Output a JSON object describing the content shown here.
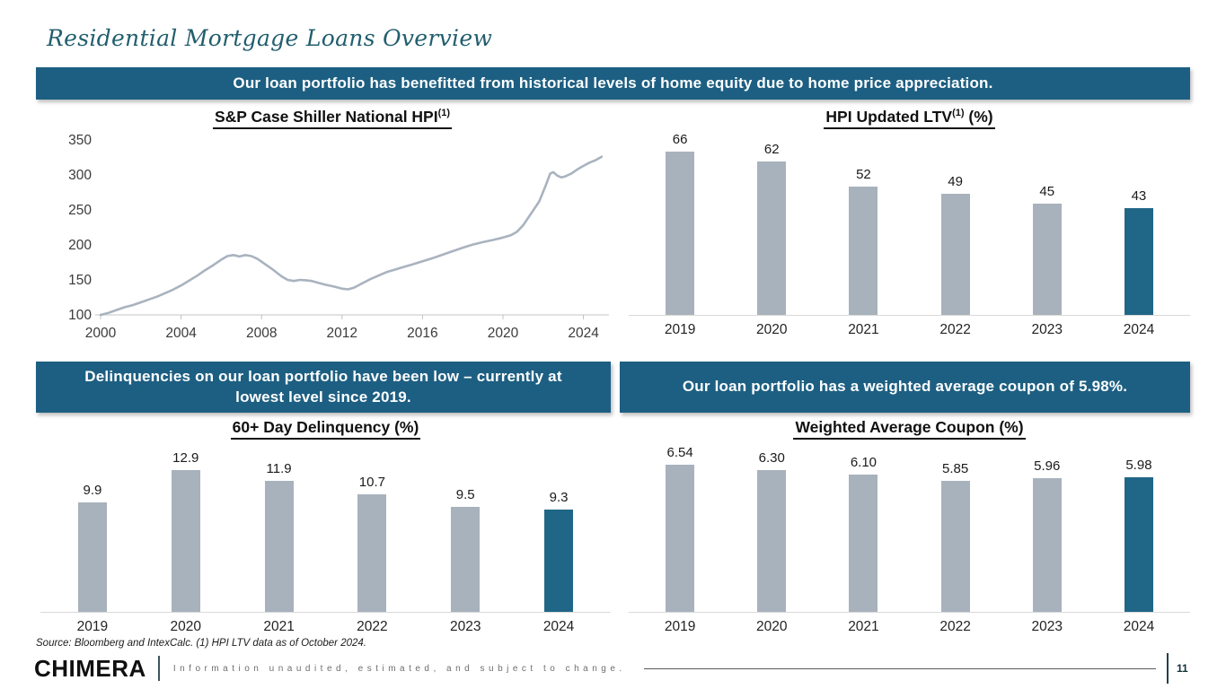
{
  "page": {
    "title": "Residential Mortgage Loans Overview",
    "page_number": "11"
  },
  "banners": {
    "top": "Our loan portfolio has benefitted from historical levels of home equity due to home price appreciation.",
    "bottom_left": "Delinquencies on our loan portfolio have been low – currently at lowest level since 2019.",
    "bottom_right": "Our loan portfolio has a weighted average coupon of 5.98%."
  },
  "footer": {
    "source_note": "Source:  Bloomberg and IntexCalc.  (1) HPI LTV data as of October 2024.",
    "logo_text": "CHIMERA",
    "disclaimer": "Information unaudited, estimated, and subject to change."
  },
  "colors": {
    "banner_teal": "#1d5f82",
    "bar_gray": "#a8b2bc",
    "bar_teal": "#206687",
    "line_gray": "#a9b3bf",
    "axis_gray": "#d9d9d9",
    "tick_gray": "#c0c0c0"
  },
  "chart_data": [
    {
      "id": "hpi_line",
      "type": "line",
      "title": "S&P Case Shiller National HPI",
      "title_sup": "(1)",
      "title_suffix": "",
      "x": [
        2000.0,
        2000.4,
        2000.8,
        2001.2,
        2001.6,
        2002.0,
        2002.4,
        2002.8,
        2003.2,
        2003.6,
        2004.0,
        2004.4,
        2004.8,
        2005.2,
        2005.6,
        2006.0,
        2006.3,
        2006.6,
        2006.9,
        2007.2,
        2007.5,
        2007.8,
        2008.2,
        2008.6,
        2009.0,
        2009.3,
        2009.6,
        2009.9,
        2010.2,
        2010.5,
        2010.8,
        2011.2,
        2011.6,
        2012.0,
        2012.3,
        2012.6,
        2013.0,
        2013.4,
        2013.8,
        2014.2,
        2014.6,
        2015.0,
        2015.5,
        2016.0,
        2016.5,
        2017.0,
        2017.5,
        2018.0,
        2018.5,
        2019.0,
        2019.5,
        2020.0,
        2020.4,
        2020.7,
        2021.0,
        2021.4,
        2021.8,
        2022.1,
        2022.35,
        2022.5,
        2022.7,
        2022.9,
        2023.1,
        2023.4,
        2023.7,
        2024.0,
        2024.3,
        2024.6,
        2024.9
      ],
      "values": [
        100,
        103,
        107,
        111,
        114,
        118,
        122,
        126,
        131,
        136,
        142,
        149,
        156,
        164,
        171,
        179,
        184,
        185.5,
        183.5,
        185.5,
        184,
        180,
        172,
        164,
        155,
        150,
        148.5,
        150,
        149.5,
        148.5,
        146,
        143,
        140.5,
        137.5,
        136.5,
        139,
        145,
        151,
        156,
        161,
        164.5,
        168,
        172,
        176.5,
        181,
        186,
        191,
        196,
        200.5,
        204,
        207,
        210.5,
        214,
        219,
        228,
        245,
        262,
        283,
        302,
        304,
        299,
        296.5,
        298,
        302,
        308,
        313,
        317.5,
        321,
        326
      ],
      "xlim": [
        2000,
        2025
      ],
      "ylim": [
        100,
        350
      ],
      "y_ticks": [
        100,
        150,
        200,
        250,
        300,
        350
      ],
      "x_ticks": [
        2000,
        2004,
        2008,
        2012,
        2016,
        2020,
        2024
      ],
      "grid": false,
      "legend": "none"
    },
    {
      "id": "hpi_updated_ltv",
      "type": "bar",
      "title": "HPI Updated LTV",
      "title_sup": "(1)",
      "title_suffix": " (%)",
      "categories": [
        "2019",
        "2020",
        "2021",
        "2022",
        "2023",
        "2024"
      ],
      "values": [
        66,
        62,
        52,
        49,
        45,
        43
      ],
      "value_labels": [
        "66",
        "62",
        "52",
        "49",
        "45",
        "43"
      ],
      "ylim": [
        0,
        74
      ],
      "highlight_index": 5,
      "grid": false,
      "legend": "none"
    },
    {
      "id": "delinquency_60plus",
      "type": "bar",
      "title": "60+ Day Delinquency (%)",
      "title_sup": "",
      "title_suffix": "",
      "categories": [
        "2019",
        "2020",
        "2021",
        "2022",
        "2023",
        "2024"
      ],
      "values": [
        9.9,
        12.9,
        11.9,
        10.7,
        9.5,
        9.3
      ],
      "value_labels": [
        "9.9",
        "12.9",
        "11.9",
        "10.7",
        "9.5",
        "9.3"
      ],
      "ylim": [
        0,
        15.4
      ],
      "highlight_index": 5,
      "grid": false,
      "legend": "none"
    },
    {
      "id": "weighted_avg_coupon",
      "type": "bar",
      "title": "Weighted Average Coupon (%)",
      "title_sup": "",
      "title_suffix": "",
      "categories": [
        "2019",
        "2020",
        "2021",
        "2022",
        "2023",
        "2024"
      ],
      "values": [
        6.54,
        6.3,
        6.1,
        5.85,
        5.96,
        5.98
      ],
      "value_labels": [
        "6.54",
        "6.30",
        "6.10",
        "5.85",
        "5.96",
        "5.98"
      ],
      "ylim": [
        0,
        7.55
      ],
      "highlight_index": 5,
      "grid": false,
      "legend": "none"
    }
  ]
}
